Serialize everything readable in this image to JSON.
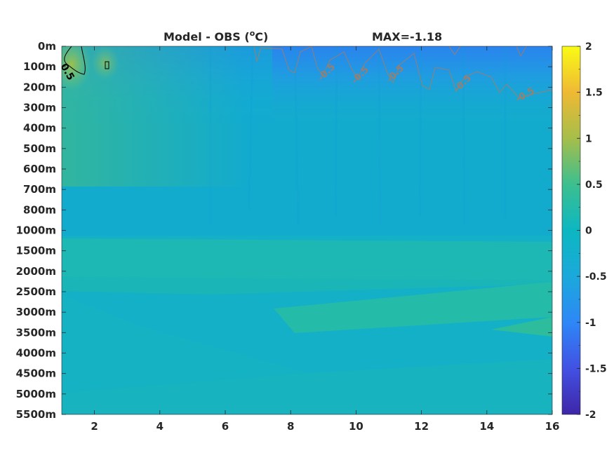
{
  "chart_data": {
    "type": "heatmap",
    "title_left": "Model - OBS (",
    "title_sup": "o",
    "title_unit": "C)",
    "title_right": "MAX=-1.18",
    "x": {
      "ticks": [
        2,
        4,
        6,
        8,
        10,
        12,
        14,
        16
      ],
      "tick_labels": [
        "2",
        "4",
        "6",
        "8",
        "10",
        "12",
        "14",
        "16"
      ],
      "range": [
        1,
        16
      ]
    },
    "y": {
      "tick_labels": [
        "0m",
        "100m",
        "200m",
        "300m",
        "400m",
        "500m",
        "600m",
        "700m",
        "800m",
        "1000m",
        "1500m",
        "2000m",
        "2500m",
        "3000m",
        "3500m",
        "4000m",
        "4500m",
        "5000m",
        "5500m"
      ]
    },
    "colorbar": {
      "range": [
        -2,
        2
      ],
      "ticks": [
        2,
        1.5,
        1,
        0.5,
        0,
        -0.5,
        -1,
        -1.5,
        -2
      ],
      "tick_labels": [
        "2",
        "1.5",
        "1",
        "0.5",
        "0",
        "-0.5",
        "-1",
        "-1.5",
        "-2"
      ],
      "colormap": "parula"
    },
    "contours": [
      {
        "label": "0.5",
        "color": "#000000"
      },
      {
        "label": "-0.5",
        "color": "#a0705a"
      }
    ],
    "field_description_values": {
      "surface_max_positive": 0.5,
      "min": -1.18
    }
  }
}
